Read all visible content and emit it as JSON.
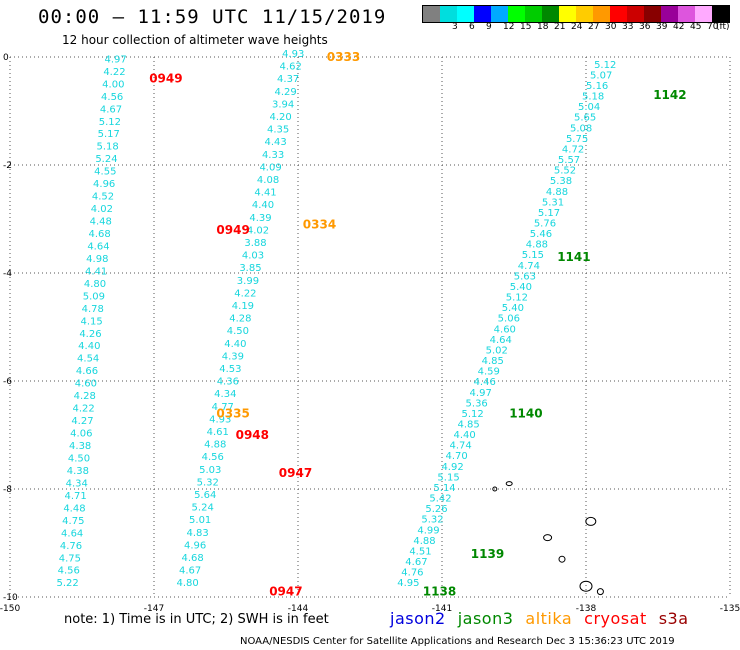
{
  "header": {
    "title": "00:00 – 11:59 UTC 11/15/2019",
    "subtitle": "12 hour collection of altimeter wave heights"
  },
  "legend": {
    "unit": "(ft)",
    "swatches": [
      {
        "color": "#808080",
        "label": ""
      },
      {
        "color": "#00dede",
        "label": "3"
      },
      {
        "color": "#00ffff",
        "label": "6"
      },
      {
        "color": "#0000ff",
        "label": "9"
      },
      {
        "color": "#00aaff",
        "label": "12"
      },
      {
        "color": "#00ff00",
        "label": "15"
      },
      {
        "color": "#00cc00",
        "label": "18"
      },
      {
        "color": "#008800",
        "label": "21"
      },
      {
        "color": "#ffff00",
        "label": "24"
      },
      {
        "color": "#ffcc00",
        "label": "27"
      },
      {
        "color": "#ff9900",
        "label": "30"
      },
      {
        "color": "#ff0000",
        "label": "33"
      },
      {
        "color": "#cc0000",
        "label": "36"
      },
      {
        "color": "#880000",
        "label": "39"
      },
      {
        "color": "#990099",
        "label": "42"
      },
      {
        "color": "#dd55dd",
        "label": "45"
      },
      {
        "color": "#ffaaff",
        "label": "70"
      },
      {
        "color": "#000000",
        "label": ""
      }
    ]
  },
  "map": {
    "lat_labels": [
      "0",
      "-2",
      "-4",
      "-6",
      "-8",
      "-10"
    ],
    "lon_labels": [
      "-150",
      "-147",
      "-144",
      "-141",
      "-138",
      "-135"
    ],
    "lat_range": [
      -10,
      0
    ],
    "lon_range": [
      -150,
      -135
    ],
    "tracks": [
      {
        "satellite": "cryosat",
        "color": "#17d6dd",
        "lon_top": -147.8,
        "lon_bot": -148.8,
        "lat_top": -0.1,
        "lat_bot": -9.8,
        "values": [
          "4.97",
          "4.22",
          "4.00",
          "4.56",
          "4.67",
          "5.12",
          "5.17",
          "5.18",
          "5.24",
          "4.55",
          "4.96",
          "4.52",
          "4.02",
          "4.48",
          "4.68",
          "4.64",
          "4.98",
          "4.41",
          "4.80",
          "5.09",
          "4.78",
          "4.15",
          "4.26",
          "4.40",
          "4.54",
          "4.66",
          "4.60",
          "4.28",
          "4.22",
          "4.27",
          "4.06",
          "4.38",
          "4.50",
          "4.38",
          "4.34",
          "4.71",
          "4.48",
          "4.75",
          "4.64",
          "4.76",
          "4.75",
          "4.56",
          "5.22"
        ]
      },
      {
        "satellite": "cryosat",
        "color": "#17d6dd",
        "lon_top": -144.1,
        "lon_bot": -146.3,
        "lat_top": 0.0,
        "lat_bot": -9.8,
        "values": [
          "4.93",
          "4.62",
          "4.37",
          "4.29",
          "3.94",
          "4.20",
          "4.35",
          "4.43",
          "4.33",
          "4.09",
          "4.08",
          "4.41",
          "4.40",
          "4.39",
          "4.02",
          "3.88",
          "4.03",
          "3.85",
          "3.99",
          "4.22",
          "4.19",
          "4.28",
          "4.50",
          "4.40",
          "4.39",
          "4.53",
          "4.36",
          "4.34",
          "4.77",
          "4.93",
          "4.61",
          "4.88",
          "4.56",
          "5.03",
          "5.32",
          "5.64",
          "5.24",
          "5.01",
          "4.83",
          "4.96",
          "4.68",
          "4.67",
          "4.80"
        ]
      },
      {
        "satellite": "jason3",
        "color": "#17d6dd",
        "lon_top": -137.6,
        "lon_bot": -141.7,
        "lat_top": -0.2,
        "lat_bot": -9.8,
        "values": [
          "5.12",
          "5.07",
          "5.16",
          "5.18",
          "5.04",
          "5.65",
          "5.08",
          "5.75",
          "4.72",
          "5.57",
          "5.52",
          "5.38",
          "4.88",
          "5.31",
          "5.17",
          "5.76",
          "5.46",
          "4.88",
          "5.15",
          "4.74",
          "5.63",
          "5.40",
          "5.12",
          "5.40",
          "5.06",
          "4.60",
          "4.64",
          "5.02",
          "4.85",
          "4.59",
          "4.46",
          "4.97",
          "5.36",
          "5.12",
          "4.85",
          "4.40",
          "4.74",
          "4.70",
          "4.92",
          "5.15",
          "5.14",
          "5.42",
          "5.26",
          "5.32",
          "4.99",
          "4.88",
          "4.51",
          "4.67",
          "4.76",
          "4.95"
        ]
      }
    ],
    "pass_labels": [
      {
        "text": "0333",
        "sat": "altika",
        "lon": -143.4,
        "lat": 0.0
      },
      {
        "text": "0949",
        "sat": "cryosat",
        "lon": -147.1,
        "lat": -0.4
      },
      {
        "text": "1142",
        "sat": "jason3",
        "lon": -136.6,
        "lat": -0.7
      },
      {
        "text": "0334",
        "sat": "altika",
        "lon": -143.9,
        "lat": -3.1
      },
      {
        "text": "0949",
        "sat": "cryosat",
        "lon": -145.7,
        "lat": -3.2
      },
      {
        "text": "1141",
        "sat": "jason3",
        "lon": -138.6,
        "lat": -3.7
      },
      {
        "text": "0335",
        "sat": "altika",
        "lon": -145.7,
        "lat": -6.6
      },
      {
        "text": "1140",
        "sat": "jason3",
        "lon": -139.6,
        "lat": -6.6
      },
      {
        "text": "0948",
        "sat": "cryosat",
        "lon": -145.3,
        "lat": -7.0
      },
      {
        "text": "0947",
        "sat": "cryosat",
        "lon": -144.4,
        "lat": -7.7
      },
      {
        "text": "1139",
        "sat": "jason3",
        "lon": -140.4,
        "lat": -9.2
      },
      {
        "text": "0947",
        "sat": "cryosat",
        "lon": -144.6,
        "lat": -9.9
      },
      {
        "text": "1138",
        "sat": "jason3",
        "lon": -141.4,
        "lat": -9.9
      }
    ]
  },
  "satellites": [
    {
      "name": "jason2",
      "color": "#0000dd"
    },
    {
      "name": "jason3",
      "color": "#008800"
    },
    {
      "name": "altika",
      "color": "#ff9900"
    },
    {
      "name": "cryosat",
      "color": "#ff0000"
    },
    {
      "name": "s3a",
      "color": "#990000"
    }
  ],
  "footer": {
    "note": "note:  1) Time is in UTC;  2) SWH is in feet",
    "credit": "NOAA/NESDIS Center for Satellite Applications and Research    Dec  3 15:36:23 UTC 2019"
  }
}
